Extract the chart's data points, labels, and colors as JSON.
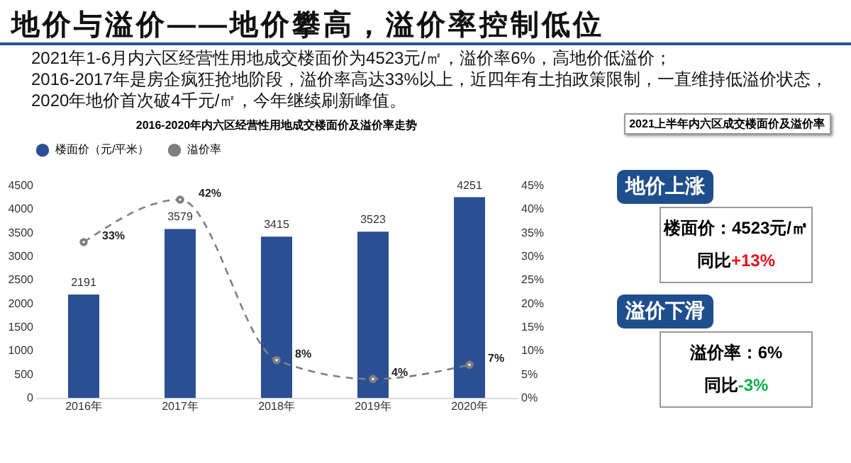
{
  "chart_data": [
    {
      "type": "bar",
      "title": "地价与溢价——地价攀高，溢价率控制低位",
      "subtitle": "2016-2020年内六区经营性用地成交楼面价及溢价率走势",
      "annotations": [
        "2021年1-6月内六区经营性用地成交楼面价为4523元/㎡，溢价率6%，高地价低溢价；",
        "2016-2017年是房企疯狂抢地阶段，溢价率高达33%以上，近四年有土拍政策限制，一直维持低溢价状态，2020年地价首次破4千元/㎡，今年继续刷新峰值。"
      ],
      "categories": [
        "2016年",
        "2017年",
        "2018年",
        "2019年",
        "2020年"
      ],
      "series": [
        {
          "name": "楼面价（元/平米）",
          "type": "bar",
          "color": "#2b4f93",
          "values": [
            2191,
            3579,
            3415,
            3523,
            4251
          ],
          "value_labels": [
            "2191",
            "3579",
            "3415",
            "3523",
            "4251"
          ]
        },
        {
          "name": "溢价率",
          "type": "line",
          "axis": "y2",
          "color": "#7f7f7f",
          "values": [
            33,
            42,
            8,
            4,
            7
          ],
          "value_labels": [
            "33%",
            "42%",
            "8%",
            "4%",
            "7%"
          ]
        }
      ],
      "ylim": [
        0,
        4500
      ],
      "yticks": [
        0,
        500,
        1000,
        1500,
        2000,
        2500,
        3000,
        3500,
        4000,
        4500
      ],
      "y2lim": [
        0,
        45
      ],
      "y2ticks": [
        {
          "value": 0,
          "label": "0%"
        },
        {
          "value": 5,
          "label": "5%"
        },
        {
          "value": 10,
          "label": "10%"
        },
        {
          "value": 15,
          "label": "15%"
        },
        {
          "value": 20,
          "label": "20%"
        },
        {
          "value": 25,
          "label": "25%"
        },
        {
          "value": 30,
          "label": "30%"
        },
        {
          "value": 35,
          "label": "35%"
        },
        {
          "value": 40,
          "label": "40%"
        },
        {
          "value": 45,
          "label": "45%"
        }
      ],
      "legend": "top",
      "marker": "circle",
      "line_style": "dashed"
    },
    {
      "type": "other",
      "title": "2021上半年内六区成交楼面价及溢价率",
      "annotations": [
        "地价上涨",
        "楼面价：4523元/㎡",
        "同比",
        "+13%",
        "溢价下滑",
        "溢价率：6%",
        "同比",
        "-3%"
      ]
    }
  ]
}
